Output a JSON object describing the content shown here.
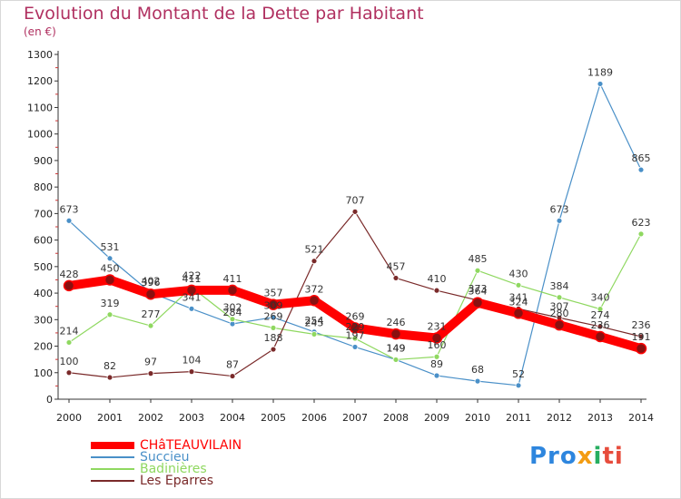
{
  "title": "Evolution du Montant de la Dette par Habitant",
  "unit_label": "(en €)",
  "logo": {
    "part1": "Pro",
    "part2": "x",
    "part3": "i",
    "part4": "ti"
  },
  "chart_data": {
    "type": "line",
    "title": "Evolution du Montant de la Dette par Habitant",
    "ylabel": "(en €)",
    "ylim": [
      0,
      1300
    ],
    "yticks": [
      0,
      100,
      200,
      300,
      400,
      500,
      600,
      700,
      800,
      900,
      1000,
      1100,
      1200,
      1300
    ],
    "x": [
      "2000",
      "2001",
      "2002",
      "2003",
      "2004",
      "2005",
      "2006",
      "2007",
      "2008",
      "2009",
      "2010",
      "2011",
      "2012",
      "2013",
      "2014"
    ],
    "grid": false,
    "legend": "bottom-left",
    "series": [
      {
        "name": "CHâTEAUVILAIN",
        "color": "#ff0000",
        "width": 10,
        "values": [
          428,
          450,
          396,
          411,
          411,
          357,
          372,
          269,
          246,
          231,
          364,
          324,
          280,
          236,
          191
        ]
      },
      {
        "name": "Succieu",
        "color": "#4a90c8",
        "width": 1.2,
        "values": [
          673,
          531,
          402,
          341,
          284,
          309,
          254,
          197,
          149,
          89,
          68,
          52,
          673,
          1189,
          865
        ]
      },
      {
        "name": "Badinières",
        "color": "#8fd860",
        "width": 1.2,
        "values": [
          214,
          319,
          277,
          422,
          302,
          269,
          245,
          229,
          149,
          160,
          485,
          430,
          384,
          340,
          623
        ]
      },
      {
        "name": "Les Eparres",
        "color": "#7a2a2a",
        "width": 1.2,
        "values": [
          100,
          82,
          97,
          104,
          87,
          188,
          521,
          707,
          457,
          410,
          373,
          341,
          307,
          274,
          236
        ]
      }
    ]
  }
}
